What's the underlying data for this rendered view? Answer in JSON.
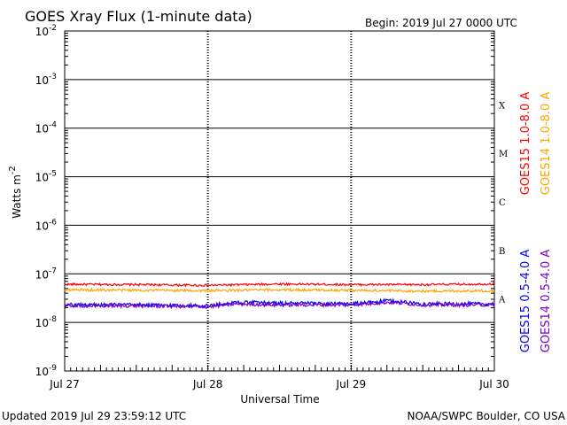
{
  "header": {
    "title": "GOES Xray Flux (1-minute data)",
    "begin": "Begin:  2019 Jul 27 0000 UTC"
  },
  "footer": {
    "updated": "Updated 2019 Jul 29 23:59:12 UTC",
    "credit": "NOAA/SWPC Boulder, CO USA"
  },
  "colors": {
    "goes15_long": "#ff0000",
    "goes14_long": "#ffa500",
    "goes15_short": "#0000ff",
    "goes14_short": "#7a00c8"
  },
  "chart_data": {
    "type": "line",
    "title": "GOES Xray Flux (1-minute data)",
    "xlabel": "Universal Time",
    "ylabel": "Watts m-2",
    "yscale": "log",
    "ylim": [
      1e-09,
      0.01
    ],
    "y_ticks": [
      {
        "base": "10",
        "exp": "-9"
      },
      {
        "base": "10",
        "exp": "-8"
      },
      {
        "base": "10",
        "exp": "-7"
      },
      {
        "base": "10",
        "exp": "-6"
      },
      {
        "base": "10",
        "exp": "-5"
      },
      {
        "base": "10",
        "exp": "-4"
      },
      {
        "base": "10",
        "exp": "-3"
      },
      {
        "base": "10",
        "exp": "-2"
      }
    ],
    "x_ticks": [
      "Jul 27",
      "Jul 28",
      "Jul 29",
      "Jul 30"
    ],
    "x_range_days": [
      0,
      3
    ],
    "flare_classes": [
      "A",
      "B",
      "C",
      "M",
      "X"
    ],
    "grid": true,
    "legend_placement": "right",
    "series": [
      {
        "name": "GOES15 1.0-8.0 A",
        "color": "#ff0000",
        "x": [
          0,
          0.5,
          1.0,
          1.5,
          2.0,
          2.5,
          3.0
        ],
        "values": [
          6.1e-08,
          6e-08,
          5.8e-08,
          6.2e-08,
          6e-08,
          6e-08,
          6.2e-08
        ]
      },
      {
        "name": "GOES14 1.0-8.0 A",
        "color": "#ffa500",
        "x": [
          0,
          0.5,
          1.0,
          1.5,
          2.0,
          2.5,
          3.0
        ],
        "values": [
          4.7e-08,
          4.6e-08,
          4.5e-08,
          4.7e-08,
          4.6e-08,
          4.4e-08,
          4.5e-08
        ]
      },
      {
        "name": "GOES15 0.5-4.0 A",
        "color": "#0000ff",
        "x": [
          0,
          0.5,
          1.0,
          1.2,
          1.5,
          2.0,
          2.26,
          2.5,
          3.0
        ],
        "values": [
          2.3e-08,
          2.3e-08,
          2.2e-08,
          2.6e-08,
          2.5e-08,
          2.4e-08,
          2.8e-08,
          2.4e-08,
          2.4e-08
        ]
      },
      {
        "name": "GOES14 0.5-4.0 A",
        "color": "#7a00c8",
        "x": [
          0,
          0.5,
          1.0,
          1.2,
          1.5,
          2.0,
          2.26,
          2.5,
          3.0
        ],
        "values": [
          2.2e-08,
          2.2e-08,
          2.1e-08,
          2.4e-08,
          2.3e-08,
          2.3e-08,
          2.6e-08,
          2.3e-08,
          2.3e-08
        ]
      }
    ]
  }
}
